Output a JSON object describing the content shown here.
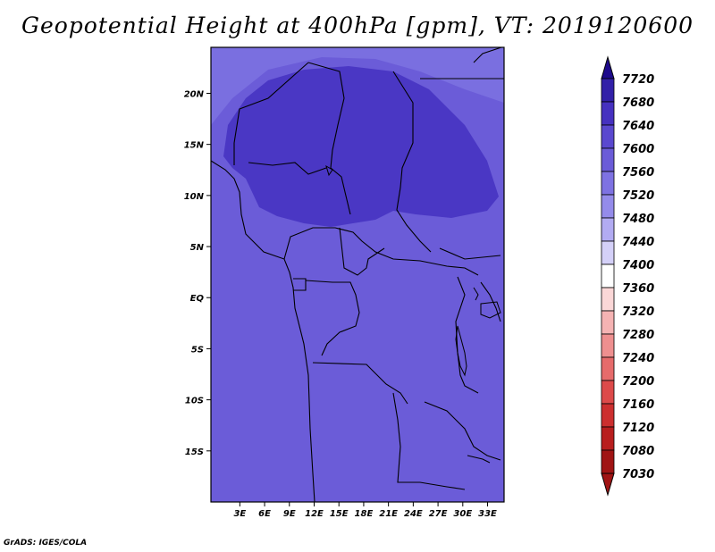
{
  "title": "Geopotential Height at 400hPa [gpm], VT: 2019120600",
  "footer": "GrADS: IGES/COLA",
  "map": {
    "lat_range": [
      -20,
      24.5
    ],
    "lon_range": [
      -0.5,
      35
    ],
    "lat_ticks": [
      {
        "value": 20,
        "label": "20N"
      },
      {
        "value": 15,
        "label": "15N"
      },
      {
        "value": 10,
        "label": "10N"
      },
      {
        "value": 5,
        "label": "5N"
      },
      {
        "value": 0,
        "label": "EQ"
      },
      {
        "value": -5,
        "label": "5S"
      },
      {
        "value": -10,
        "label": "10S"
      },
      {
        "value": -15,
        "label": "15S"
      }
    ],
    "lon_ticks": [
      {
        "value": 3,
        "label": "3E"
      },
      {
        "value": 6,
        "label": "6E"
      },
      {
        "value": 9,
        "label": "9E"
      },
      {
        "value": 12,
        "label": "12E"
      },
      {
        "value": 15,
        "label": "15E"
      },
      {
        "value": 18,
        "label": "18E"
      },
      {
        "value": 21,
        "label": "21E"
      },
      {
        "value": 24,
        "label": "24E"
      },
      {
        "value": 27,
        "label": "27E"
      },
      {
        "value": 30,
        "label": "30E"
      },
      {
        "value": 33,
        "label": "33E"
      }
    ],
    "base_color": "#6b5cd8",
    "north_band_color": "#7a6fe0",
    "max_core_color": "#4a37c4"
  },
  "colorbar": {
    "levels": [
      "7720",
      "7680",
      "7640",
      "7600",
      "7560",
      "7520",
      "7480",
      "7440",
      "7400",
      "7360",
      "7320",
      "7280",
      "7240",
      "7200",
      "7160",
      "7120",
      "7080",
      "7030"
    ],
    "colors": [
      "#1e0a8c",
      "#3220a8",
      "#4631c0",
      "#5a48cf",
      "#6b5cd8",
      "#7e72e2",
      "#948bea",
      "#b2abf2",
      "#d4d0f8",
      "#ffffff",
      "#fbd7d7",
      "#f5b3b3",
      "#ee8f8f",
      "#e66b6b",
      "#dd4a4a",
      "#cc2f2f",
      "#b81e1e",
      "#a01414"
    ]
  }
}
